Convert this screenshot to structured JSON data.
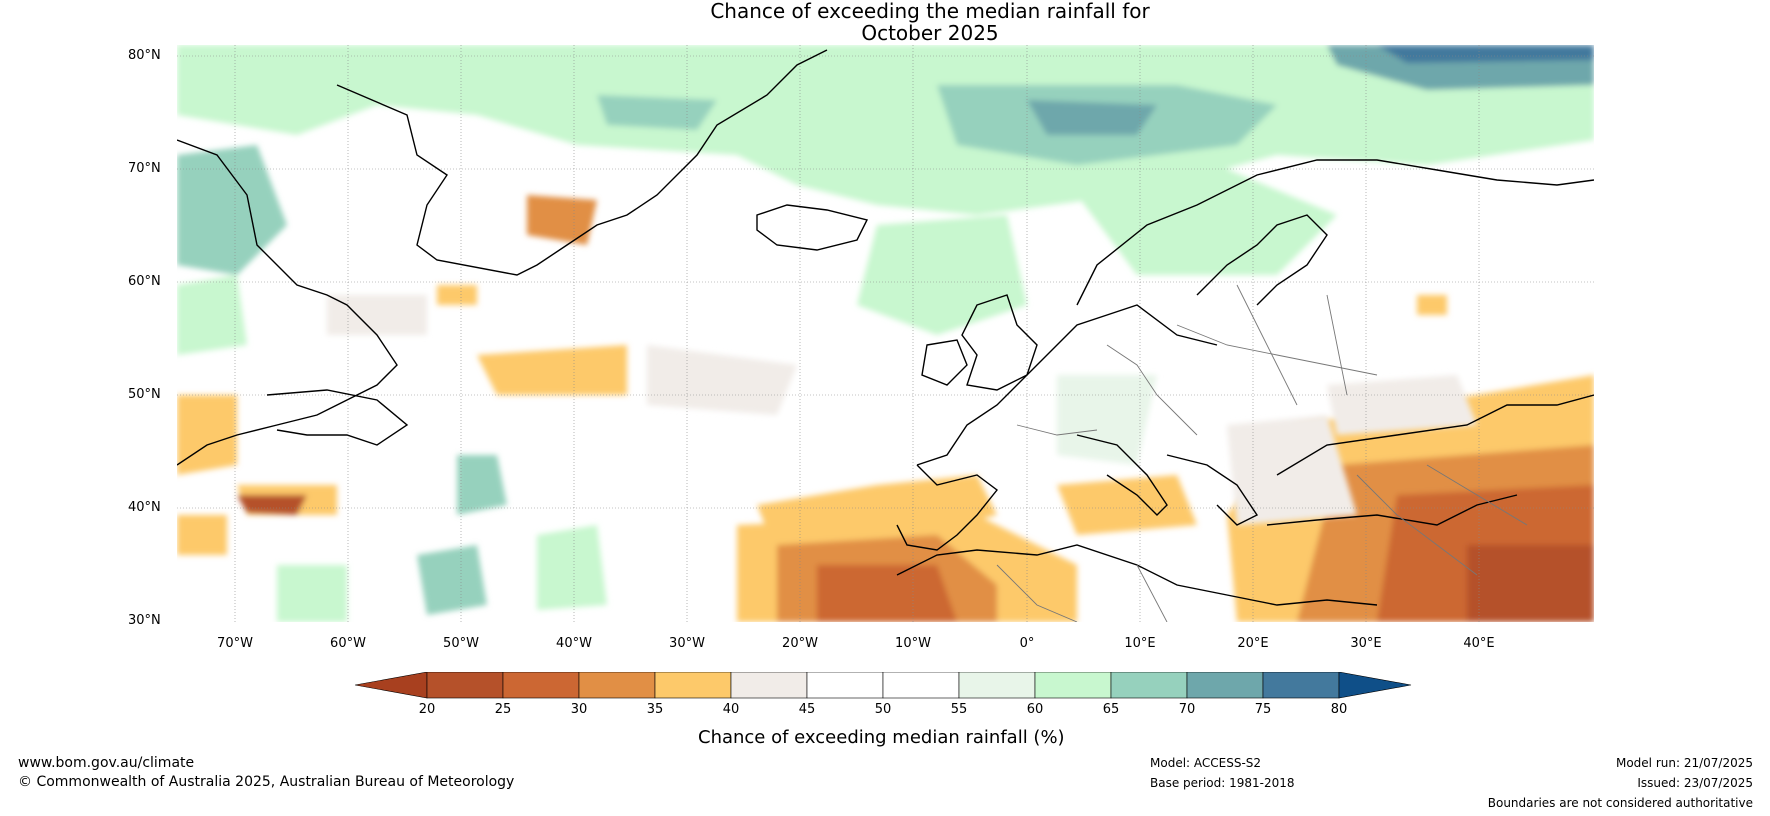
{
  "title": {
    "line1": "Chance of exceeding the median rainfall for",
    "line2": "October 2025"
  },
  "axes": {
    "lat_labels": [
      "80°N",
      "70°N",
      "60°N",
      "50°N",
      "40°N",
      "30°N"
    ],
    "lon_labels": [
      "70°W",
      "60°W",
      "50°W",
      "40°W",
      "30°W",
      "20°W",
      "10°W",
      "0°",
      "10°E",
      "20°E",
      "30°E",
      "40°E"
    ]
  },
  "colorbar": {
    "title": "Chance of exceeding median rainfall (%)",
    "ticks": [
      "20",
      "25",
      "30",
      "35",
      "40",
      "45",
      "50",
      "55",
      "60",
      "65",
      "70",
      "75",
      "80"
    ],
    "colors": [
      "#a8401f",
      "#b5512a",
      "#cc6733",
      "#e18f45",
      "#fdc96a",
      "#f1ece8",
      "#ffffff",
      "#ffffff",
      "#e8f5e9",
      "#c8f7cf",
      "#96d1bd",
      "#6ea7ab",
      "#43799d",
      "#0f4f88"
    ],
    "low_arrow_color": "#a8401f",
    "high_arrow_color": "#0f4f88"
  },
  "footer": {
    "website": "www.bom.gov.au/climate",
    "copyright": "© Commonwealth of Australia 2025, Australian Bureau of Meteorology",
    "model": "Model: ACCESS-S2",
    "base_period": "Base period: 1981-2018",
    "model_run": "Model run: 21/07/2025",
    "issued": "Issued: 23/07/2025",
    "disclaimer": "Boundaries are not considered authoritative"
  }
}
